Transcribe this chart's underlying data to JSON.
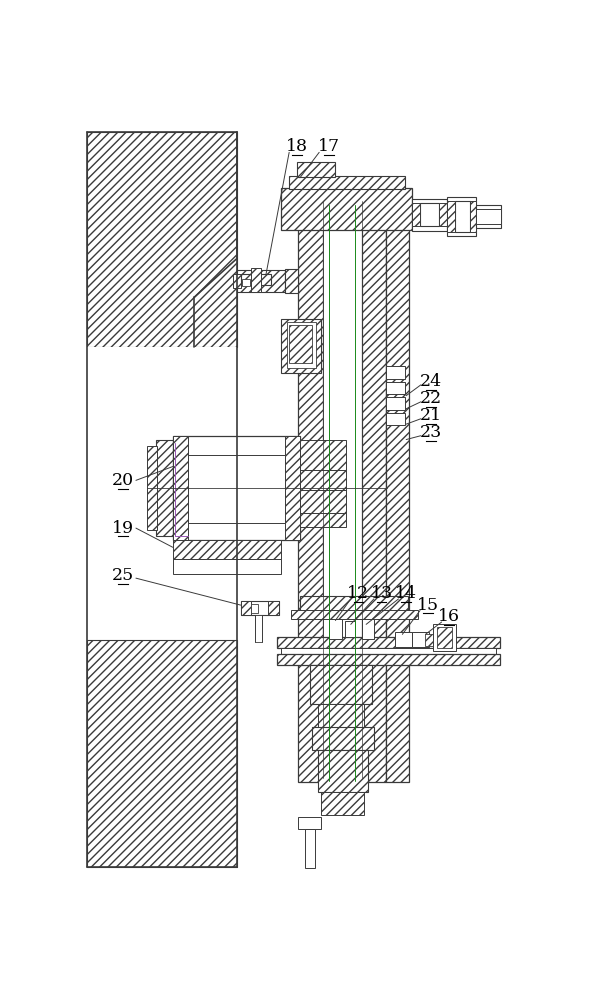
{
  "bg_color": "#ffffff",
  "lc": "#3a3a3a",
  "figsize": [
    5.89,
    10.0
  ],
  "dpi": 100
}
